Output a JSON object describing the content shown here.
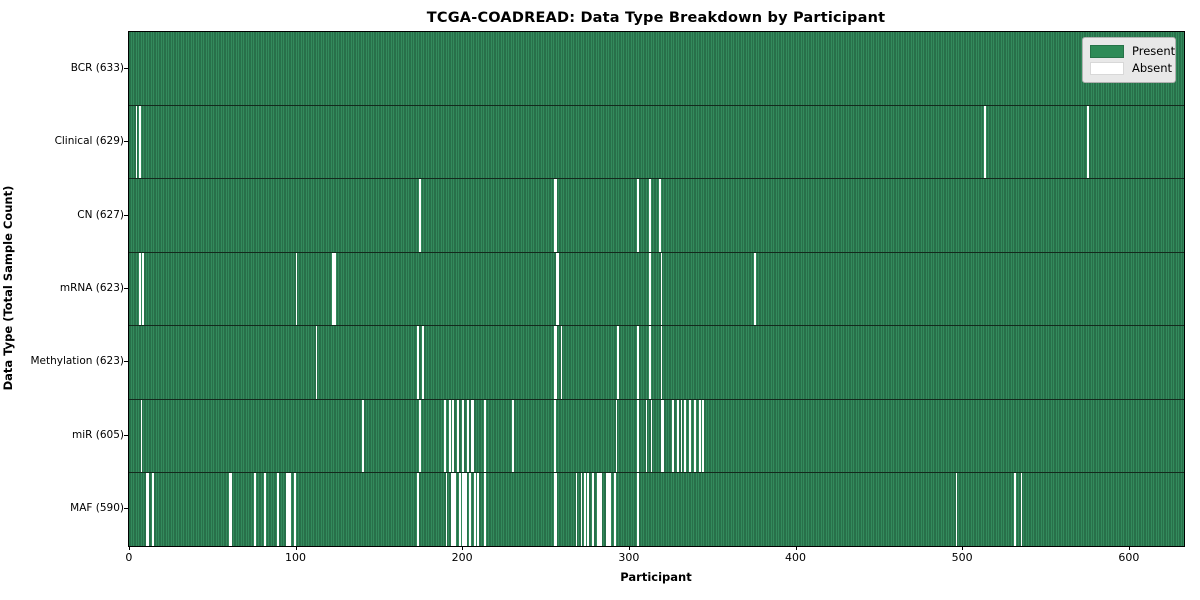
{
  "title": "TCGA-COADREAD: Data Type Breakdown by Participant",
  "axes": {
    "xlabel": "Participant",
    "ylabel": "Data Type (Total Sample Count)"
  },
  "legend": {
    "present_label": "Present",
    "absent_label": "Absent"
  },
  "colors": {
    "present_fill": "#2e8b57",
    "present_edge": "#1d5737",
    "absent_fill": "#ffffff",
    "plot_border": "#000000",
    "legend_bg": "#e8e8e8"
  },
  "chart_data": {
    "type": "heatmap",
    "title": "TCGA-COADREAD: Data Type Breakdown by Participant",
    "xlabel": "Participant",
    "ylabel": "Data Type (Total Sample Count)",
    "legend_entries": [
      "Present",
      "Absent"
    ],
    "legend_position": "upper right",
    "n_participants": 633,
    "x_ticks": [
      0,
      100,
      200,
      300,
      400,
      500,
      600
    ],
    "xlim": [
      -0.5,
      632.5
    ],
    "grid": false,
    "rows": [
      {
        "label": "BCR (633)",
        "data_type": "BCR",
        "total_samples": 633,
        "absent_participants": []
      },
      {
        "label": "Clinical (629)",
        "data_type": "Clinical",
        "total_samples": 629,
        "absent_participants": [
          4,
          6,
          513,
          575
        ]
      },
      {
        "label": "CN (627)",
        "data_type": "CN",
        "total_samples": 627,
        "absent_participants": [
          174,
          255,
          256,
          305,
          312,
          318
        ]
      },
      {
        "label": "mRNA (623)",
        "data_type": "mRNA",
        "total_samples": 623,
        "absent_participants": [
          6,
          8,
          100,
          122,
          123,
          256,
          257,
          312,
          319,
          375
        ]
      },
      {
        "label": "Methylation (623)",
        "data_type": "Methylation",
        "total_samples": 623,
        "absent_participants": [
          112,
          173,
          176,
          255,
          256,
          259,
          293,
          305,
          312,
          319
        ]
      },
      {
        "label": "miR (605)",
        "data_type": "miR",
        "total_samples": 605,
        "absent_participants": [
          7,
          140,
          174,
          189,
          192,
          194,
          197,
          200,
          203,
          205,
          206,
          213,
          230,
          255,
          292,
          305,
          310,
          313,
          319,
          320,
          326,
          329,
          331,
          333,
          336,
          339,
          342,
          344
        ]
      },
      {
        "label": "MAF (590)",
        "data_type": "MAF",
        "total_samples": 590,
        "absent_participants": [
          10,
          11,
          14,
          60,
          61,
          75,
          81,
          89,
          94,
          95,
          96,
          99,
          173,
          190,
          193,
          194,
          195,
          198,
          200,
          201,
          202,
          204,
          207,
          209,
          213,
          255,
          256,
          268,
          271,
          273,
          275,
          278,
          281,
          282,
          283,
          286,
          287,
          288,
          291,
          305,
          496,
          531,
          535
        ]
      }
    ]
  }
}
